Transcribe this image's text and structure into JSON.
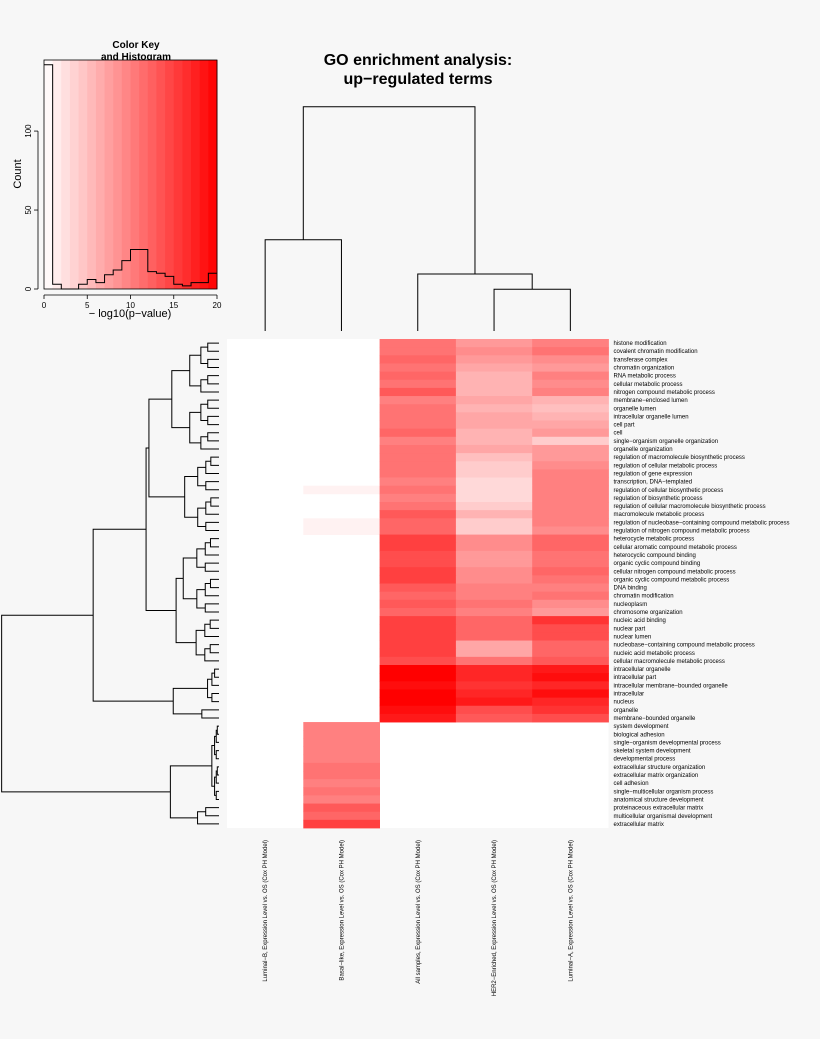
{
  "chart_data": {
    "type": "heatmap",
    "title_line1": "GO enrichment analysis:",
    "title_line2": "up−regulated terms",
    "color_key": {
      "title_line1": "Color Key",
      "title_line2": "and Histogram",
      "xlabel": "− log10(p−value)",
      "ylabel": "Count",
      "x_range": [
        0,
        20
      ],
      "y_range": [
        0,
        145
      ],
      "x_ticks": [
        "0",
        "5",
        "10",
        "15",
        "20"
      ],
      "y_ticks": [
        "0",
        "50",
        "100"
      ],
      "histogram": [
        {
          "x0": 0,
          "x1": 1,
          "count": 142
        },
        {
          "x0": 1,
          "x1": 2,
          "count": 3
        },
        {
          "x0": 2,
          "x1": 3,
          "count": 0
        },
        {
          "x0": 3,
          "x1": 4,
          "count": 0
        },
        {
          "x0": 4,
          "x1": 5,
          "count": 3
        },
        {
          "x0": 5,
          "x1": 6,
          "count": 6
        },
        {
          "x0": 6,
          "x1": 7,
          "count": 4
        },
        {
          "x0": 7,
          "x1": 8,
          "count": 9
        },
        {
          "x0": 8,
          "x1": 9,
          "count": 12
        },
        {
          "x0": 9,
          "x1": 10,
          "count": 18
        },
        {
          "x0": 10,
          "x1": 11,
          "count": 25
        },
        {
          "x0": 11,
          "x1": 12,
          "count": 25
        },
        {
          "x0": 12,
          "x1": 13,
          "count": 11
        },
        {
          "x0": 13,
          "x1": 14,
          "count": 10
        },
        {
          "x0": 14,
          "x1": 15,
          "count": 8
        },
        {
          "x0": 15,
          "x1": 16,
          "count": 3
        },
        {
          "x0": 16,
          "x1": 17,
          "count": 2
        },
        {
          "x0": 17,
          "x1": 18,
          "count": 4
        },
        {
          "x0": 18,
          "x1": 19,
          "count": 4
        },
        {
          "x0": 19,
          "x1": 20,
          "count": 10
        }
      ]
    },
    "columns": [
      "Luminal−B, Expression Level vs. OS (Cox PH Model)",
      "Basal−like, Expression Level vs. OS (Cox PH Model)",
      "All samples, Expression Level vs. OS (Cox PH Model)",
      "HER2−Enriched, Expression Level vs. OS (Cox PH Model)",
      "Luminal−A, Expression Level vs. OS (Cox PH Model)"
    ],
    "rows": [
      "histone modification",
      "covalent chromatin modification",
      "transferase complex",
      "chromatin organization",
      "RNA metabolic process",
      "cellular metabolic process",
      "nitrogen compound metabolic process",
      "membrane−enclosed lumen",
      "organelle lumen",
      "intracellular organelle lumen",
      "cell part",
      "cell",
      "single−organism organelle organization",
      "organelle organization",
      "regulation of macromolecule biosynthetic process",
      "regulation of cellular metabolic process",
      "regulation of gene expression",
      "transcription, DNA−templated",
      "regulation of cellular biosynthetic process",
      "regulation of biosynthetic process",
      "regulation of cellular macromolecule biosynthetic process",
      "macromolecule metabolic process",
      "regulation of nucleobase−containing compound metabolic process",
      "regulation of nitrogen compound metabolic process",
      "heterocycle metabolic process",
      "cellular aromatic compound metabolic process",
      "heterocyclic compound binding",
      "organic cyclic compound binding",
      "cellular nitrogen compound metabolic process",
      "organic cyclic compound metabolic process",
      "DNA binding",
      "chromatin modification",
      "nucleoplasm",
      "chromosome organization",
      "nucleic acid binding",
      "nuclear part",
      "nuclear lumen",
      "nucleobase−containing compound metabolic process",
      "nucleic acid metabolic process",
      "cellular macromolecule metabolic process",
      "intracellular organelle",
      "intracellular part",
      "intracellular membrane−bounded organelle",
      "intracellular",
      "nucleus",
      "organelle",
      "membrane−bounded organelle",
      "system development",
      "biological adhesion",
      "single−organism developmental process",
      "skeletal system development",
      "developmental process",
      "extracellular structure organization",
      "extracellular matrix organization",
      "cell adhesion",
      "single−multicellular organism process",
      "anatomical structure development",
      "proteinaceous extracellular matrix",
      "multicellular organismal development",
      "extracellular matrix"
    ],
    "values": [
      [
        0,
        0,
        11,
        8,
        10
      ],
      [
        0,
        0,
        11,
        9,
        11
      ],
      [
        0,
        0,
        12,
        8,
        9
      ],
      [
        0,
        0,
        11,
        7,
        8
      ],
      [
        0,
        0,
        12,
        6,
        10
      ],
      [
        0,
        0,
        11,
        6,
        9
      ],
      [
        0,
        0,
        13,
        6,
        10
      ],
      [
        0,
        0,
        10,
        7,
        6
      ],
      [
        0,
        0,
        11,
        6,
        5
      ],
      [
        0,
        0,
        11,
        7,
        6
      ],
      [
        0,
        0,
        11,
        7,
        7
      ],
      [
        0,
        0,
        12,
        6,
        8
      ],
      [
        0,
        0,
        10,
        6,
        4
      ],
      [
        0,
        0,
        11,
        7,
        8
      ],
      [
        0,
        0,
        11,
        5,
        8
      ],
      [
        0,
        0,
        11,
        4,
        9
      ],
      [
        0,
        0,
        11,
        4,
        10
      ],
      [
        0,
        0,
        10,
        3,
        10
      ],
      [
        0,
        1,
        11,
        3,
        10
      ],
      [
        0,
        0,
        10,
        3,
        10
      ],
      [
        0,
        0,
        11,
        4,
        10
      ],
      [
        0,
        0,
        13,
        6,
        10
      ],
      [
        0,
        1,
        12,
        4,
        10
      ],
      [
        0,
        1,
        12,
        4,
        9
      ],
      [
        0,
        0,
        15,
        9,
        12
      ],
      [
        0,
        0,
        15,
        9,
        12
      ],
      [
        0,
        0,
        14,
        8,
        11
      ],
      [
        0,
        0,
        14,
        8,
        11
      ],
      [
        0,
        0,
        15,
        9,
        12
      ],
      [
        0,
        0,
        15,
        9,
        11
      ],
      [
        0,
        0,
        13,
        10,
        10
      ],
      [
        0,
        0,
        12,
        10,
        11
      ],
      [
        0,
        0,
        13,
        11,
        9
      ],
      [
        0,
        0,
        12,
        10,
        8
      ],
      [
        0,
        0,
        15,
        12,
        16
      ],
      [
        0,
        0,
        15,
        12,
        14
      ],
      [
        0,
        0,
        15,
        12,
        14
      ],
      [
        0,
        0,
        15,
        7,
        12
      ],
      [
        0,
        0,
        15,
        7,
        12
      ],
      [
        0,
        0,
        14,
        11,
        13
      ],
      [
        0,
        0,
        20,
        17,
        18
      ],
      [
        0,
        0,
        20,
        17,
        19
      ],
      [
        0,
        0,
        19,
        16,
        17
      ],
      [
        0,
        0,
        20,
        17,
        19
      ],
      [
        0,
        0,
        20,
        18,
        17
      ],
      [
        0,
        0,
        19,
        14,
        16
      ],
      [
        0,
        0,
        18,
        13,
        14
      ],
      [
        0,
        10,
        0,
        0,
        0
      ],
      [
        0,
        10,
        0,
        0,
        0
      ],
      [
        0,
        10,
        0,
        0,
        0
      ],
      [
        0,
        10,
        0,
        0,
        0
      ],
      [
        0,
        10,
        0,
        0,
        0
      ],
      [
        0,
        11,
        0,
        0,
        0
      ],
      [
        0,
        11,
        0,
        0,
        0
      ],
      [
        0,
        10,
        0,
        0,
        0
      ],
      [
        0,
        11,
        0,
        0,
        0
      ],
      [
        0,
        10,
        0,
        0,
        0
      ],
      [
        0,
        13,
        0,
        0,
        0
      ],
      [
        0,
        12,
        0,
        0,
        0
      ],
      [
        0,
        15,
        0,
        0,
        0
      ]
    ],
    "color_low": "#ffffff",
    "color_high": "#ff0000"
  }
}
